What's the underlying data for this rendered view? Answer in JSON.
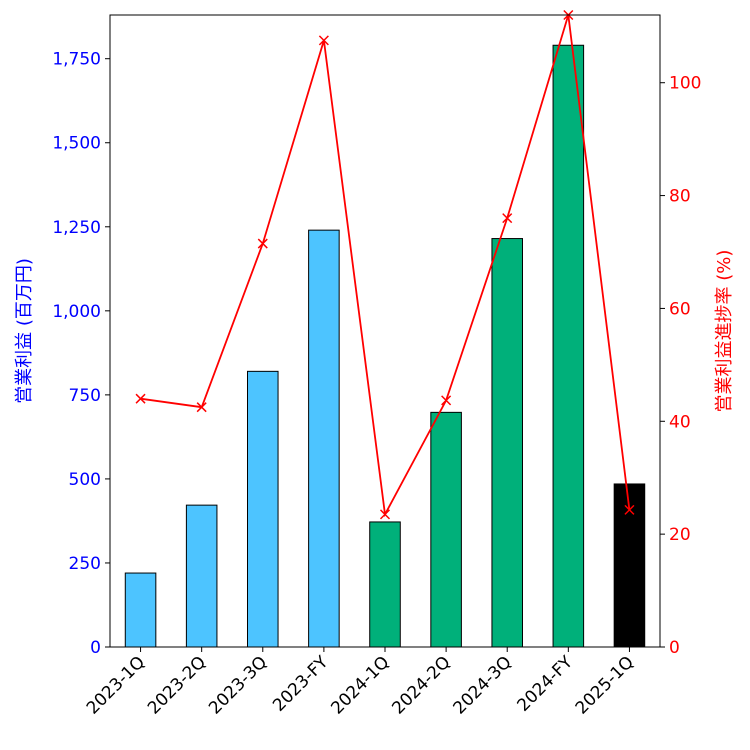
{
  "chart_data": {
    "type": "bar",
    "categories": [
      "2023-1Q",
      "2023-2Q",
      "2023-3Q",
      "2023-FY",
      "2024-1Q",
      "2024-2Q",
      "2024-3Q",
      "2024-FY",
      "2025-1Q"
    ],
    "series": [
      {
        "name": "営業利益",
        "axis": "left",
        "kind": "bar",
        "values": [
          220,
          422,
          820,
          1240,
          372,
          698,
          1215,
          1790,
          485
        ],
        "colors": [
          "#4dc4ff",
          "#4dc4ff",
          "#4dc4ff",
          "#4dc4ff",
          "#00b07a",
          "#00b07a",
          "#00b07a",
          "#00b07a",
          "#000000"
        ]
      },
      {
        "name": "営業利益進捗率",
        "axis": "right",
        "kind": "line",
        "marker": "x",
        "color": "#ff0000",
        "values": [
          44,
          42.5,
          71.5,
          107.5,
          23.5,
          43.7,
          76,
          112,
          24.3
        ]
      }
    ],
    "ylabel_left": "営業利益 (百万円)",
    "ylabel_right": "営業利益進捗率 (%)",
    "ylim_left": [
      0,
      1880
    ],
    "ylim_right": [
      0,
      112
    ],
    "yticks_left": [
      0,
      250,
      500,
      750,
      1000,
      1250,
      1500,
      1750
    ],
    "yticks_left_labels": [
      "0",
      "250",
      "500",
      "750",
      "1,000",
      "1,250",
      "1,500",
      "1,750"
    ],
    "yticks_right": [
      0,
      20,
      40,
      60,
      80,
      100
    ],
    "yticks_right_labels": [
      "0",
      "20",
      "40",
      "60",
      "80",
      "100"
    ],
    "left_axis_color": "#0000ff",
    "right_axis_color": "#ff0000",
    "grid": false
  }
}
